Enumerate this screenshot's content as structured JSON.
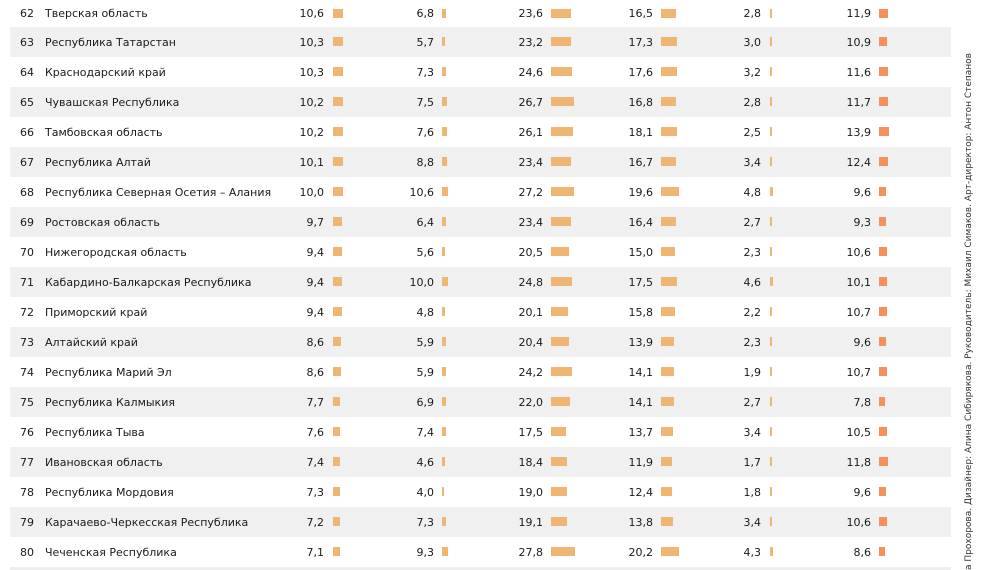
{
  "chart_data": {
    "type": "table",
    "colors": {
      "bar": "#efb673",
      "last_bar": "#f5925c",
      "alt_row": "#f0f0f0"
    },
    "rows": [
      {
        "rank": "62",
        "region": "Тверская область",
        "values": [
          10.6,
          6.8,
          23.6,
          16.5,
          2.8,
          11.9
        ]
      },
      {
        "rank": "63",
        "region": "Республика Татарстан",
        "values": [
          10.3,
          5.7,
          23.2,
          17.3,
          3.0,
          10.9
        ]
      },
      {
        "rank": "64",
        "region": "Краснодарский край",
        "values": [
          10.3,
          7.3,
          24.6,
          17.6,
          3.2,
          11.6
        ]
      },
      {
        "rank": "65",
        "region": "Чувашская Республика",
        "values": [
          10.2,
          7.5,
          26.7,
          16.8,
          2.8,
          11.7
        ]
      },
      {
        "rank": "66",
        "region": "Тамбовская область",
        "values": [
          10.2,
          7.6,
          26.1,
          18.1,
          2.5,
          13.9
        ]
      },
      {
        "rank": "67",
        "region": "Республика Алтай",
        "values": [
          10.1,
          8.8,
          23.4,
          16.7,
          3.4,
          12.4
        ]
      },
      {
        "rank": "68",
        "region": "Республика Северная Осетия – Алания",
        "values": [
          10.0,
          10.6,
          27.2,
          19.6,
          4.8,
          9.6
        ]
      },
      {
        "rank": "69",
        "region": "Ростовская область",
        "values": [
          9.7,
          6.4,
          23.4,
          16.4,
          2.7,
          9.3
        ]
      },
      {
        "rank": "70",
        "region": "Нижегородская область",
        "values": [
          9.4,
          5.6,
          20.5,
          15.0,
          2.3,
          10.6
        ]
      },
      {
        "rank": "71",
        "region": "Кабардино-Балкарская Республика",
        "values": [
          9.4,
          10.0,
          24.8,
          17.5,
          4.6,
          10.1
        ]
      },
      {
        "rank": "72",
        "region": "Приморский край",
        "values": [
          9.4,
          4.8,
          20.1,
          15.8,
          2.2,
          10.7
        ]
      },
      {
        "rank": "73",
        "region": "Алтайский край",
        "values": [
          8.6,
          5.9,
          20.4,
          13.9,
          2.3,
          9.6
        ]
      },
      {
        "rank": "74",
        "region": "Республика Марий Эл",
        "values": [
          8.6,
          5.9,
          24.2,
          14.1,
          1.9,
          10.7
        ]
      },
      {
        "rank": "75",
        "region": "Республика Калмыкия",
        "values": [
          7.7,
          6.9,
          22.0,
          14.1,
          2.7,
          7.8
        ]
      },
      {
        "rank": "76",
        "region": "Республика Тыва",
        "values": [
          7.6,
          7.4,
          17.5,
          13.7,
          3.4,
          10.5
        ]
      },
      {
        "rank": "77",
        "region": "Ивановская область",
        "values": [
          7.4,
          4.6,
          18.4,
          11.9,
          1.7,
          11.8
        ]
      },
      {
        "rank": "78",
        "region": "Республика Мордовия",
        "values": [
          7.3,
          4.0,
          19.0,
          12.4,
          1.8,
          9.6
        ]
      },
      {
        "rank": "79",
        "region": "Карачаево-Черкесская Республика",
        "values": [
          7.2,
          7.3,
          19.1,
          13.8,
          3.4,
          10.6
        ]
      },
      {
        "rank": "80",
        "region": "Чеченская Республика",
        "values": [
          7.1,
          9.3,
          27.8,
          20.2,
          4.3,
          8.6
        ]
      }
    ]
  },
  "credit": "а Прохорова. Дизайнер: Алина Сибирякова. Руководитель: Михаил Симаков. Арт-директор: Антон Степанов"
}
